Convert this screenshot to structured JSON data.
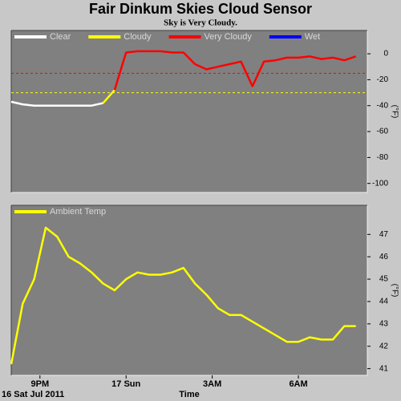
{
  "chart_data": [
    {
      "type": "line",
      "title": "Fair Dinkum Skies Cloud Sensor",
      "subtitle": "Sky is Very Cloudy.",
      "y_label": "(°F)",
      "x": [
        20.0,
        20.4,
        20.8,
        21.2,
        21.6,
        22.0,
        22.4,
        22.8,
        23.2,
        23.6,
        24.0,
        24.4,
        24.8,
        25.2,
        25.6,
        26.0,
        26.4,
        26.8,
        27.2,
        27.6,
        28.0,
        28.4,
        28.8,
        29.2,
        29.6,
        30.0,
        30.4,
        30.8,
        31.2,
        31.6,
        32.0
      ],
      "series": [
        {
          "name": "Clear",
          "color": "#ffffff",
          "values": [
            -37,
            -39,
            -40,
            -40,
            -40,
            -40,
            -40,
            -40,
            -38,
            null,
            null,
            null,
            null,
            null,
            null,
            null,
            null,
            null,
            null,
            null,
            null,
            null,
            null,
            null,
            null,
            null,
            null,
            null,
            null,
            null,
            null
          ]
        },
        {
          "name": "Cloudy",
          "color": "#ffff00",
          "values": [
            null,
            null,
            null,
            null,
            null,
            null,
            null,
            null,
            -38,
            -28,
            null,
            null,
            null,
            null,
            null,
            null,
            null,
            null,
            null,
            null,
            null,
            null,
            null,
            null,
            null,
            null,
            null,
            null,
            null,
            null,
            null
          ]
        },
        {
          "name": "Very Cloudy",
          "color": "#ff0000",
          "values": [
            null,
            null,
            null,
            null,
            null,
            null,
            null,
            null,
            null,
            -28,
            1,
            2,
            2,
            2,
            1,
            1,
            -8,
            -12,
            -10,
            -8,
            -6,
            -25,
            -6,
            -5,
            -3,
            -3,
            -2,
            -4,
            -3,
            -5,
            -2
          ]
        },
        {
          "name": "Wet",
          "color": "#0000ff",
          "values": [
            null,
            null,
            null,
            null,
            null,
            null,
            null,
            null,
            null,
            null,
            null,
            null,
            null,
            null,
            null,
            null,
            null,
            null,
            null,
            null,
            null,
            null,
            null,
            null,
            null,
            null,
            null,
            null,
            null,
            null,
            null
          ]
        }
      ],
      "thresholds": [
        {
          "value": -15,
          "color": "#ff0000"
        },
        {
          "value": -30,
          "color": "#ffff00"
        }
      ],
      "xlim": [
        20,
        32.4
      ],
      "ylim": [
        -107,
        18
      ],
      "yticks": [
        0,
        -20,
        -40,
        -60,
        -80,
        -100
      ]
    },
    {
      "type": "line",
      "y_label": "(°F)",
      "x_label": "Time",
      "date_label": "16 Sat Jul 2011",
      "x": [
        20.0,
        20.4,
        20.8,
        21.2,
        21.6,
        22.0,
        22.4,
        22.8,
        23.2,
        23.6,
        24.0,
        24.4,
        24.8,
        25.2,
        25.6,
        26.0,
        26.4,
        26.8,
        27.2,
        27.6,
        28.0,
        28.4,
        28.8,
        29.2,
        29.6,
        30.0,
        30.4,
        30.8,
        31.2,
        31.6,
        32.0
      ],
      "series": [
        {
          "name": "Ambient Temp",
          "color": "#ffff00",
          "values": [
            41.2,
            43.9,
            45.0,
            47.3,
            46.9,
            46.0,
            45.7,
            45.3,
            44.8,
            44.5,
            45.0,
            45.3,
            45.2,
            45.2,
            45.3,
            45.5,
            44.8,
            44.3,
            43.7,
            43.4,
            43.4,
            43.1,
            42.8,
            42.5,
            42.2,
            42.2,
            42.4,
            42.3,
            42.3,
            42.9,
            42.9
          ]
        }
      ],
      "xlim": [
        20,
        32.4
      ],
      "ylim": [
        40.7,
        48.3
      ],
      "yticks": [
        41,
        42,
        43,
        44,
        45,
        46,
        47
      ],
      "xticks": [
        {
          "value": 21,
          "label": "9PM"
        },
        {
          "value": 24,
          "label": "17 Sun"
        },
        {
          "value": 27,
          "label": "3AM"
        },
        {
          "value": 30,
          "label": "6AM"
        }
      ]
    }
  ]
}
